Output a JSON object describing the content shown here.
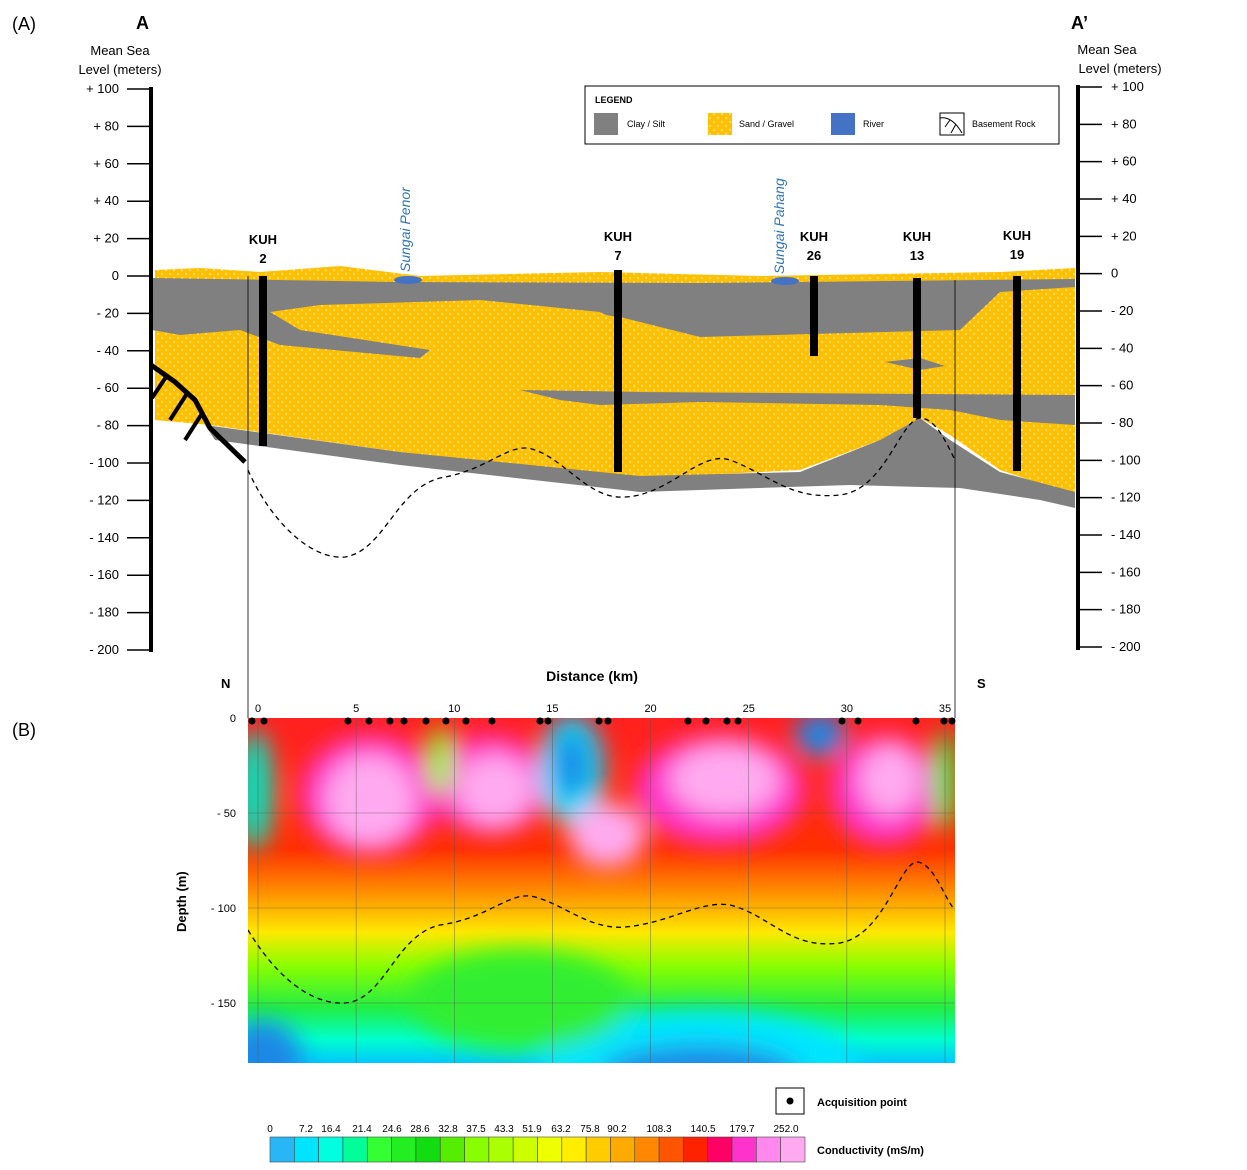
{
  "panel_a": {
    "label": "(A)",
    "start": "A",
    "end": "A’",
    "left_axis_title": [
      "Mean Sea",
      "Level (meters)"
    ],
    "right_axis_title": [
      "Mean Sea",
      "Level (meters)"
    ],
    "left_ticks": [
      "+ 100",
      "+ 80",
      "+ 60",
      "+ 40",
      "+ 20",
      "0",
      "- 20",
      "- 40",
      "- 60",
      "- 80",
      "- 100",
      "- 120",
      "- 140",
      "- 160",
      "- 180",
      "- 200"
    ],
    "right_ticks": [
      "+ 100",
      "+ 80",
      "+ 60",
      "+ 40",
      "+ 20",
      "0",
      "- 20",
      "- 40",
      "- 60",
      "- 80",
      "- 100",
      "- 120",
      "- 140",
      "- 160",
      "- 180",
      "- 200"
    ],
    "x_axis_title": "Distance (km)",
    "boreholes": [
      {
        "name": "KUH",
        "number": "2"
      },
      {
        "name": "KUH",
        "number": "7"
      },
      {
        "name": "KUH",
        "number": "26"
      },
      {
        "name": "KUH",
        "number": "13"
      },
      {
        "name": "KUH",
        "number": "19"
      }
    ],
    "rivers": [
      "Sungai Penor",
      "Sungai Pahang"
    ],
    "legend": {
      "title": "LEGEND",
      "items": [
        "Clay / Silt",
        "Sand / Gravel",
        "River",
        "Basement Rock"
      ]
    }
  },
  "panel_b": {
    "label": "(B)",
    "north": "N",
    "south": "S",
    "x_ticks": [
      0,
      5,
      10,
      15,
      20,
      25,
      30,
      35
    ],
    "y_ticks": [
      "0",
      "- 50",
      "- 100",
      "- 150"
    ],
    "y_axis_title": "Depth (m)",
    "acquisition_legend": "Acquisition point",
    "colorbar": {
      "title": "Conductivity (mS/m)",
      "labels": [
        "0",
        "7.2",
        "16.4",
        "21.4",
        "24.6",
        "28.6",
        "32.8",
        "37.5",
        "43.3",
        "51.9",
        "63.2",
        "75.8",
        "90.2",
        "108.3",
        "140.5",
        "179.7",
        "252.0"
      ],
      "colors": [
        "#29b6f6",
        "#00e5ff",
        "#00ffe0",
        "#00ff99",
        "#33ff33",
        "#22ee22",
        "#11dd11",
        "#55ee00",
        "#88ff00",
        "#aaff00",
        "#ccff00",
        "#eeff00",
        "#ffee00",
        "#ffcc00",
        "#ffaa00",
        "#ff8800",
        "#ff5500",
        "#ff2200",
        "#ff0066",
        "#ff33cc",
        "#ff88ee",
        "#ffaaf0"
      ]
    }
  }
}
